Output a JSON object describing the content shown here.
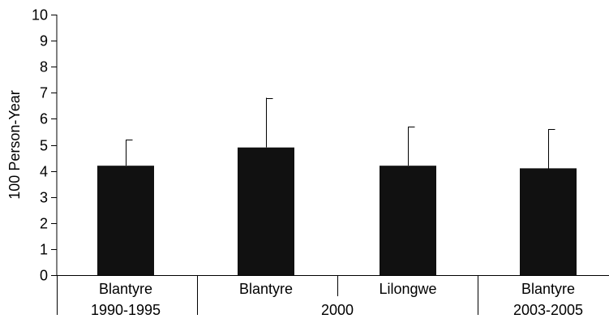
{
  "chart_data": {
    "type": "bar",
    "ylabel": "100 Person-Year",
    "xlabel": "",
    "ylim": [
      0,
      10
    ],
    "yticks": [
      0,
      1,
      2,
      3,
      4,
      5,
      6,
      7,
      8,
      9,
      10
    ],
    "grid": false,
    "bar_color": "#111111",
    "error_bars": "upper",
    "categories": [
      {
        "label_line1": "Blantyre",
        "label_line2": "1990-1995",
        "value": 4.2,
        "error_upper": 5.2
      },
      {
        "label_line1": "Blantyre",
        "label_line2": "",
        "value": 4.9,
        "error_upper": 6.8
      },
      {
        "label_line1": "Lilongwe",
        "label_line2": "",
        "value": 4.2,
        "error_upper": 5.7
      },
      {
        "label_line1": "Blantyre",
        "label_line2": "2003-2005",
        "value": 4.1,
        "error_upper": 5.6
      }
    ],
    "group_label": "2000"
  }
}
